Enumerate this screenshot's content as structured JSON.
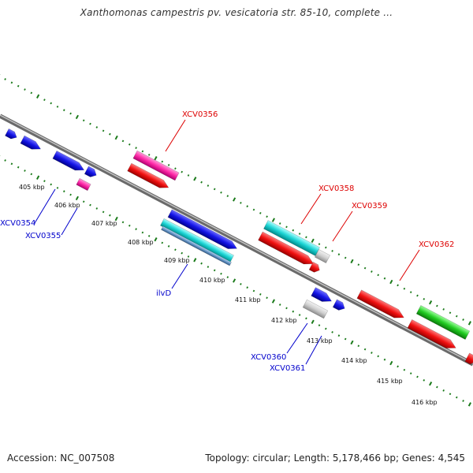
{
  "title": "Xanthomonas campestris pv. vesicatoria str. 85-10, complete ...",
  "footer": {
    "accession": "Accession: NC_007508",
    "summary": "Topology: circular; Length: 5,178,466 bp; Genes: 4,545"
  },
  "colors": {
    "backbone": "#8a8a8a",
    "tick": "#1a7a1a",
    "label_blue": "#0000cc",
    "label_red": "#dd0000"
  },
  "ticks": [
    {
      "label": "405 kbp"
    },
    {
      "label": "406 kbp"
    },
    {
      "label": "407 kbp"
    },
    {
      "label": "408 kbp"
    },
    {
      "label": "409 kbp"
    },
    {
      "label": "410 kbp"
    },
    {
      "label": "411 kbp"
    },
    {
      "label": "412 kbp"
    },
    {
      "label": "413 kbp"
    },
    {
      "label": "414 kbp"
    },
    {
      "label": "415 kbp"
    },
    {
      "label": "416 kbp"
    }
  ],
  "gene_labels": [
    {
      "name": "XCV0354",
      "color": "#0000cc"
    },
    {
      "name": "XCV0355",
      "color": "#0000cc"
    },
    {
      "name": "ilvD",
      "color": "#0000cc"
    },
    {
      "name": "XCV0356",
      "color": "#dd0000"
    },
    {
      "name": "XCV0358",
      "color": "#dd0000"
    },
    {
      "name": "XCV0359",
      "color": "#dd0000"
    },
    {
      "name": "XCV0360",
      "color": "#0000cc"
    },
    {
      "name": "XCV0361",
      "color": "#0000cc"
    },
    {
      "name": "XCV0362",
      "color": "#dd0000"
    }
  ]
}
